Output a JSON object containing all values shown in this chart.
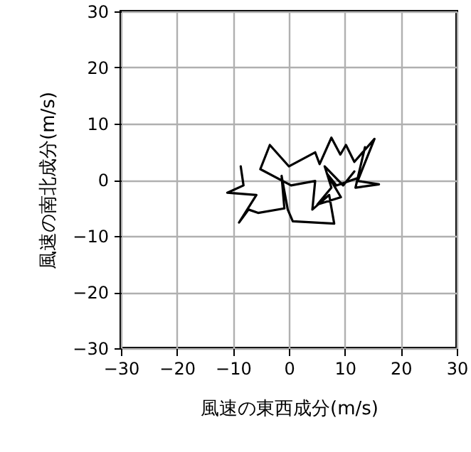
{
  "chart_data": {
    "type": "line",
    "xlabel": "風速の東西成分(m/s)",
    "ylabel": "風速の南北成分(m/s)",
    "xlim": [
      -30,
      30
    ],
    "ylim": [
      -30,
      30
    ],
    "xticks": [
      -30,
      -20,
      -10,
      0,
      10,
      20,
      30
    ],
    "yticks": [
      -30,
      -20,
      -10,
      0,
      10,
      20,
      30
    ],
    "grid": true,
    "marker": "none",
    "line_style": "solid",
    "series": [
      {
        "color": "#000000",
        "x": [
          -8.6,
          -8.1,
          -11.0,
          -5.8,
          -8.9,
          -7.2,
          -5.5,
          -0.8,
          -1.3,
          -0.2,
          0.7,
          8.1,
          7.2,
          4.2,
          4.7,
          0.4,
          -5.1,
          -3.4,
          0,
          4.7,
          5.5,
          7.6,
          9.2,
          10.2,
          11.7,
          15.3,
          12.3,
          16.1,
          11.9,
          13.6,
          12.3,
          8.5,
          6.8,
          9.3,
          5.1,
          7.6,
          6.4,
          9.7,
          11.7
        ],
        "values": [
          2.4,
          -1.0,
          -2.3,
          -2.7,
          -7.6,
          -5.3,
          -5.9,
          -5.1,
          0.7,
          -5.3,
          -7.4,
          -7.8,
          -2.7,
          -5.3,
          -0.2,
          -1.0,
          1.9,
          6.2,
          2.4,
          4.9,
          2.8,
          7.5,
          4.5,
          6.2,
          3.2,
          7.3,
          -0.2,
          -0.8,
          -1.4,
          5.8,
          0.3,
          -1.0,
          1.1,
          -3.1,
          -4.4,
          -1.4,
          2.4,
          -1.0,
          1.5
        ]
      }
    ]
  }
}
